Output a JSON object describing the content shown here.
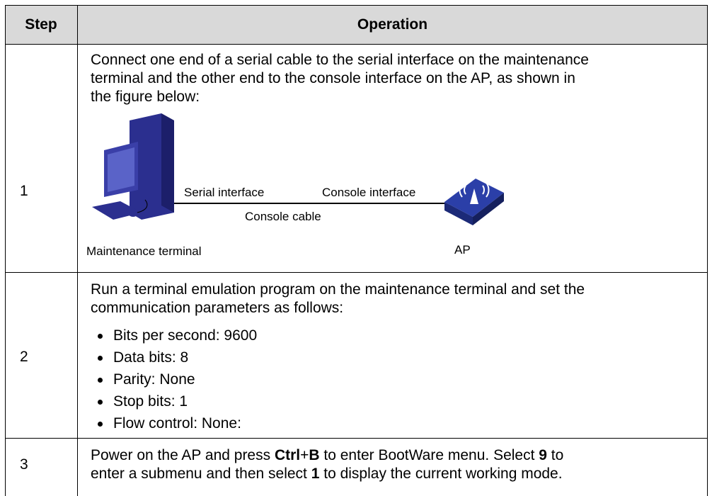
{
  "table": {
    "header": [
      "Step",
      "Operation"
    ],
    "rows": [
      {
        "step": "1",
        "lines": [
          "Connect one end of a serial cable to the serial interface on the maintenance",
          "terminal and the other end to the console interface on the AP, as shown in",
          "the figure below:"
        ],
        "figure": {
          "serial_label": "Serial interface",
          "console_label": "Console interface",
          "cable_label": "Console cable",
          "terminal_label": "Maintenance terminal",
          "ap_label": "AP"
        }
      },
      {
        "step": "2",
        "lines": [
          "Run a terminal emulation program on the maintenance terminal and set the",
          "communication parameters as follows:"
        ],
        "bullets": [
          "Bits per second: 9600",
          "Data bits: 8",
          "Parity: None",
          "Stop bits: 1",
          "Flow control: None:"
        ]
      },
      {
        "step": "3",
        "rich_lines": [
          [
            {
              "text": "Power on the AP and press ",
              "bold": false
            },
            {
              "text": "Ctrl",
              "bold": true
            },
            {
              "text": "+",
              "bold": false
            },
            {
              "text": "B",
              "bold": true
            },
            {
              "text": " to enter BootWare menu. Select ",
              "bold": false
            },
            {
              "text": "9",
              "bold": true
            },
            {
              "text": " to",
              "bold": false
            }
          ],
          [
            {
              "text": "enter a submenu and then select ",
              "bold": false
            },
            {
              "text": "1",
              "bold": true
            },
            {
              "text": " to display the current working mode.",
              "bold": false
            }
          ]
        ]
      }
    ]
  }
}
